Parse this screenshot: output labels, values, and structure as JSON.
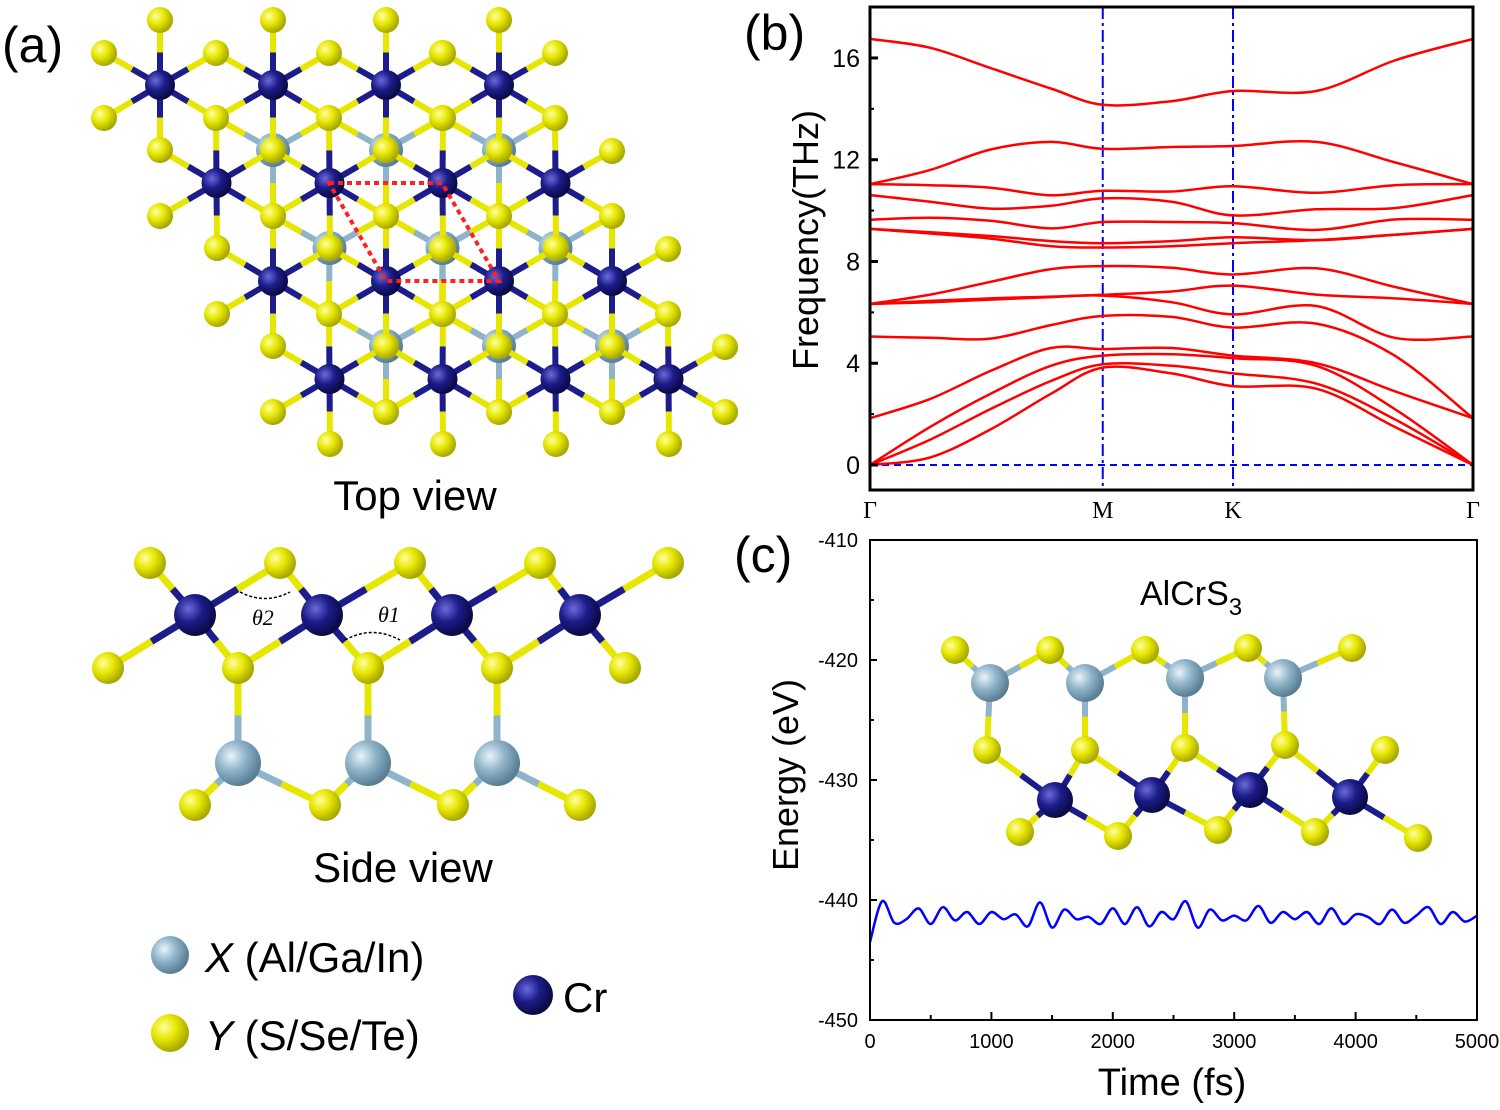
{
  "panel_a": {
    "label": "(a)",
    "top_view_label": "Top view",
    "side_view_label": "Side view",
    "theta1_label": "θ1",
    "theta2_label": "θ2",
    "legend": [
      {
        "symbol": "X",
        "text": " (Al/Ga/In)",
        "color": "#8fb3c8"
      },
      {
        "symbol": "Y",
        "text": " (S/Se/Te)",
        "color": "#e6e600"
      },
      {
        "symbol": "",
        "text": "Cr",
        "color": "#1c1c8a"
      }
    ]
  },
  "chart_data": [
    {
      "id": "b",
      "panel_label": "(b)",
      "type": "line",
      "ylabel": "Frequency(THz)",
      "ylim": [
        -1,
        18
      ],
      "yticks": [
        0,
        4,
        8,
        12,
        16
      ],
      "xticks": [
        {
          "label": "Γ",
          "k": 0
        },
        {
          "label": "M",
          "k": 0.386
        },
        {
          "label": "K",
          "k": 0.602
        },
        {
          "label": "Γ",
          "k": 1
        }
      ],
      "k": [
        0,
        0.1,
        0.2,
        0.3,
        0.386,
        0.5,
        0.602,
        0.74,
        0.87,
        1
      ],
      "line_color": "#ff0000",
      "guide_color": "#0000ff",
      "bands": [
        [
          16.75,
          16.4,
          15.6,
          14.8,
          14.16,
          14.3,
          14.7,
          14.7,
          15.9,
          16.75
        ],
        [
          11.04,
          11.6,
          12.4,
          12.7,
          12.43,
          12.5,
          12.54,
          12.7,
          11.9,
          11.04
        ],
        [
          11.04,
          11.0,
          10.9,
          10.6,
          10.78,
          10.75,
          10.96,
          10.7,
          11.0,
          11.04
        ],
        [
          10.61,
          10.35,
          10.08,
          10.19,
          10.48,
          10.35,
          9.81,
          10.05,
          10.1,
          10.61
        ],
        [
          9.64,
          9.72,
          9.6,
          9.3,
          9.55,
          9.55,
          9.51,
          9.24,
          9.65,
          9.64
        ],
        [
          9.28,
          9.15,
          9.0,
          8.8,
          8.72,
          8.8,
          8.95,
          8.84,
          9.05,
          9.28
        ],
        [
          9.28,
          9.1,
          8.9,
          8.6,
          8.55,
          8.6,
          8.72,
          8.84,
          9.05,
          9.28
        ],
        [
          6.33,
          6.7,
          7.2,
          7.7,
          7.82,
          7.75,
          7.49,
          7.73,
          7.0,
          6.33
        ],
        [
          6.33,
          6.45,
          6.55,
          6.62,
          6.69,
          6.82,
          7.05,
          6.7,
          6.55,
          6.33
        ],
        [
          6.33,
          6.4,
          6.5,
          6.6,
          6.66,
          6.4,
          5.92,
          6.25,
          5.0,
          5.05
        ],
        [
          5.05,
          5.0,
          4.97,
          5.5,
          5.86,
          5.82,
          5.4,
          5.56,
          4.3,
          1.84
        ],
        [
          1.84,
          2.6,
          3.7,
          4.6,
          4.56,
          4.6,
          4.3,
          4.0,
          2.9,
          1.84
        ],
        [
          0,
          1.5,
          2.8,
          3.9,
          4.3,
          4.35,
          4.2,
          3.9,
          2.2,
          0
        ],
        [
          0,
          1.0,
          2.2,
          3.3,
          3.96,
          3.9,
          3.6,
          3.2,
          1.8,
          0
        ],
        [
          0,
          0.3,
          1.4,
          2.8,
          3.83,
          3.6,
          3.1,
          3.0,
          1.5,
          0
        ]
      ]
    },
    {
      "id": "c",
      "panel_label": "(c)",
      "type": "line",
      "xlabel": "Time (fs)",
      "ylabel": "Energy (eV)",
      "xlim": [
        0,
        5000
      ],
      "ylim": [
        -450,
        -410
      ],
      "xticks": [
        0,
        1000,
        2000,
        3000,
        4000,
        5000
      ],
      "yticks": [
        -410,
        -420,
        -430,
        -440,
        -450
      ],
      "line_color": "#0000ff",
      "inset_title": "AlCrS",
      "inset_subscript": "3",
      "x": [
        0,
        100,
        200,
        300,
        400,
        500,
        600,
        700,
        800,
        900,
        1000,
        1100,
        1200,
        1300,
        1400,
        1500,
        1600,
        1700,
        1800,
        1900,
        2000,
        2100,
        2200,
        2300,
        2400,
        2500,
        2600,
        2700,
        2800,
        2900,
        3000,
        3100,
        3200,
        3300,
        3400,
        3500,
        3600,
        3700,
        3800,
        3900,
        4000,
        4100,
        4200,
        4300,
        4400,
        4500,
        4600,
        4700,
        4800,
        4900,
        5000
      ],
      "y": [
        -443.5,
        -440.1,
        -441.9,
        -441.6,
        -440.7,
        -442.0,
        -440.6,
        -441.7,
        -441.0,
        -442.0,
        -441.0,
        -441.6,
        -441.2,
        -442.2,
        -440.2,
        -442.3,
        -440.8,
        -441.6,
        -441.4,
        -442.0,
        -440.7,
        -442.0,
        -440.6,
        -442.2,
        -441.0,
        -441.6,
        -440.1,
        -442.3,
        -440.8,
        -441.7,
        -441.3,
        -441.7,
        -440.5,
        -441.9,
        -441.0,
        -441.6,
        -441.0,
        -442.0,
        -440.7,
        -442.0,
        -441.2,
        -441.4,
        -442.0,
        -440.8,
        -441.9,
        -441.3,
        -440.6,
        -442.0,
        -441.0,
        -441.8,
        -441.3
      ]
    }
  ]
}
